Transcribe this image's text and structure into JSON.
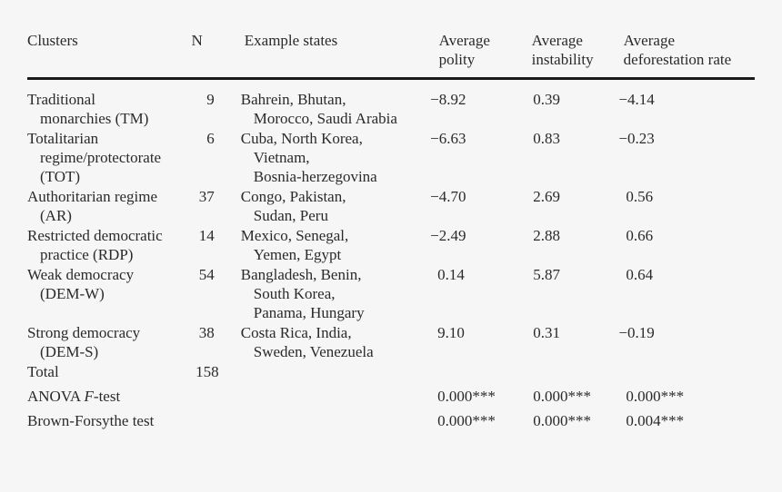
{
  "page": {
    "background_color": "#f6f6f6",
    "text_color": "#2a2a2a",
    "rule_color": "#1a1a1a"
  },
  "table": {
    "headers": {
      "clusters": "Clusters",
      "n": "N",
      "examples": "Example states",
      "polity": [
        "Average",
        "polity"
      ],
      "instability": [
        "Average",
        "instability"
      ],
      "deforestation": [
        "Average",
        "deforestation rate"
      ]
    },
    "rows": [
      {
        "cluster_lines": [
          "Traditional",
          "monarchies (TM)"
        ],
        "n": "9",
        "examples": [
          "Bahrein, Bhutan,",
          "Morocco, Saudi Arabia"
        ],
        "polity": "−8.92",
        "instability": "0.39",
        "deforestation": "−4.14"
      },
      {
        "cluster_lines": [
          "Totalitarian",
          "regime/protectorate",
          "(TOT)"
        ],
        "n": "6",
        "examples": [
          "Cuba, North Korea,",
          "Vietnam,",
          "Bosnia-herzegovina"
        ],
        "polity": "−6.63",
        "instability": "0.83",
        "deforestation": "−0.23"
      },
      {
        "cluster_lines": [
          "Authoritarian regime",
          "(AR)"
        ],
        "n": "37",
        "examples": [
          "Congo, Pakistan,",
          "Sudan, Peru"
        ],
        "polity": "−4.70",
        "instability": "2.69",
        "deforestation": "0.56"
      },
      {
        "cluster_lines": [
          "Restricted democratic",
          "practice (RDP)"
        ],
        "n": "14",
        "examples": [
          "Mexico, Senegal,",
          "Yemen, Egypt"
        ],
        "polity": "−2.49",
        "instability": "2.88",
        "deforestation": "0.66"
      },
      {
        "cluster_lines": [
          "Weak democracy",
          "(DEM-W)"
        ],
        "n": "54",
        "examples": [
          "Bangladesh, Benin,",
          "South Korea,",
          "Panama, Hungary"
        ],
        "polity": "0.14",
        "instability": "5.87",
        "deforestation": "0.64"
      },
      {
        "cluster_lines": [
          "Strong democracy",
          "(DEM-S)"
        ],
        "n": "38",
        "examples": [
          "Costa Rica, India,",
          "Sweden, Venezuela"
        ],
        "polity": "9.10",
        "instability": "0.31",
        "deforestation": "−0.19"
      }
    ],
    "total_row": {
      "label": "Total",
      "n": "158"
    },
    "tests": [
      {
        "label_prefix": "ANOVA",
        "label_italic": "F",
        "label_suffix": "-test",
        "polity": "0.000***",
        "instability": "0.000***",
        "deforestation": "0.000***"
      },
      {
        "label": "Brown-Forsythe test",
        "polity": "0.000***",
        "instability": "0.000***",
        "deforestation": "0.004***"
      }
    ]
  }
}
